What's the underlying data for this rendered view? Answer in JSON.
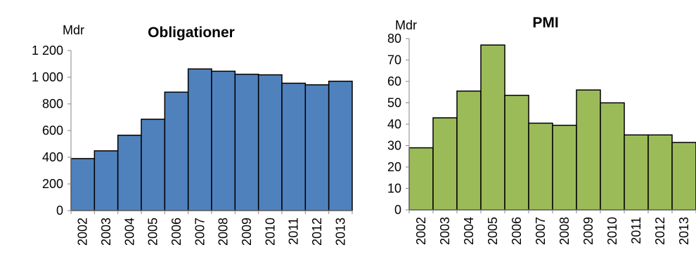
{
  "chart_data": [
    {
      "type": "bar",
      "title": "Obligationer",
      "unit_label": "Mdr",
      "categories": [
        "2002",
        "2003",
        "2004",
        "2005",
        "2006",
        "2007",
        "2008",
        "2009",
        "2010",
        "2011",
        "2012",
        "2013"
      ],
      "values": [
        390,
        448,
        565,
        685,
        888,
        1062,
        1045,
        1022,
        1018,
        955,
        943,
        970
      ],
      "ylim": [
        0,
        1200
      ],
      "yticks": [
        0,
        200,
        400,
        600,
        800,
        1000,
        1200
      ],
      "ytick_labels": [
        "0",
        "200",
        "400",
        "600",
        "800",
        "1 000",
        "1 200"
      ],
      "grid": false,
      "bar_color": "#4F81BD"
    },
    {
      "type": "bar",
      "title": "PMI",
      "unit_label": "Mdr",
      "categories": [
        "2002",
        "2003",
        "2004",
        "2005",
        "2006",
        "2007",
        "2008",
        "2009",
        "2010",
        "2011",
        "2012",
        "2013"
      ],
      "values": [
        29,
        43,
        55.5,
        77,
        53.5,
        40.5,
        39.5,
        56,
        50,
        35,
        35,
        31.5
      ],
      "ylim": [
        0,
        80
      ],
      "yticks": [
        0,
        10,
        20,
        30,
        40,
        50,
        60,
        70,
        80
      ],
      "ytick_labels": [
        "0",
        "10",
        "20",
        "30",
        "40",
        "50",
        "60",
        "70",
        "80"
      ],
      "grid": false,
      "bar_color": "#9BBB59"
    }
  ]
}
